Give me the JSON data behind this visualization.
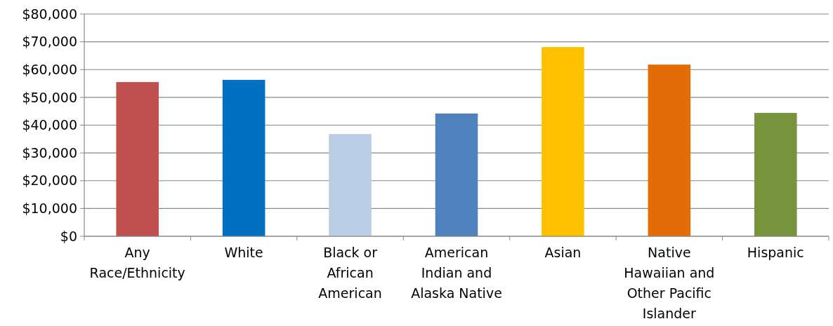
{
  "chart_data": {
    "type": "bar",
    "categories": [
      "Any Race/Ethnicity",
      "White",
      "Black or African American",
      "American Indian and Alaska Native",
      "Asian",
      "Native Hawaiian and Other Pacific Islander",
      "Hispanic"
    ],
    "values": [
      55500,
      56300,
      36800,
      44200,
      68100,
      61800,
      44400
    ],
    "colors": [
      "#c0504d",
      "#0070c0",
      "#b9cde5",
      "#4f81bd",
      "#ffc000",
      "#e36c09",
      "#77933c"
    ],
    "ylim": [
      0,
      80000
    ],
    "yticks": [
      {
        "value": 0,
        "label": "$0"
      },
      {
        "value": 10000,
        "label": "$10,000"
      },
      {
        "value": 20000,
        "label": "$20,000"
      },
      {
        "value": 30000,
        "label": "$30,000"
      },
      {
        "value": 40000,
        "label": "$40,000"
      },
      {
        "value": 50000,
        "label": "$50,000"
      },
      {
        "value": 60000,
        "label": "$60,000"
      },
      {
        "value": 70000,
        "label": "$70,000"
      },
      {
        "value": 80000,
        "label": "$80,000"
      }
    ],
    "grid": "y"
  }
}
